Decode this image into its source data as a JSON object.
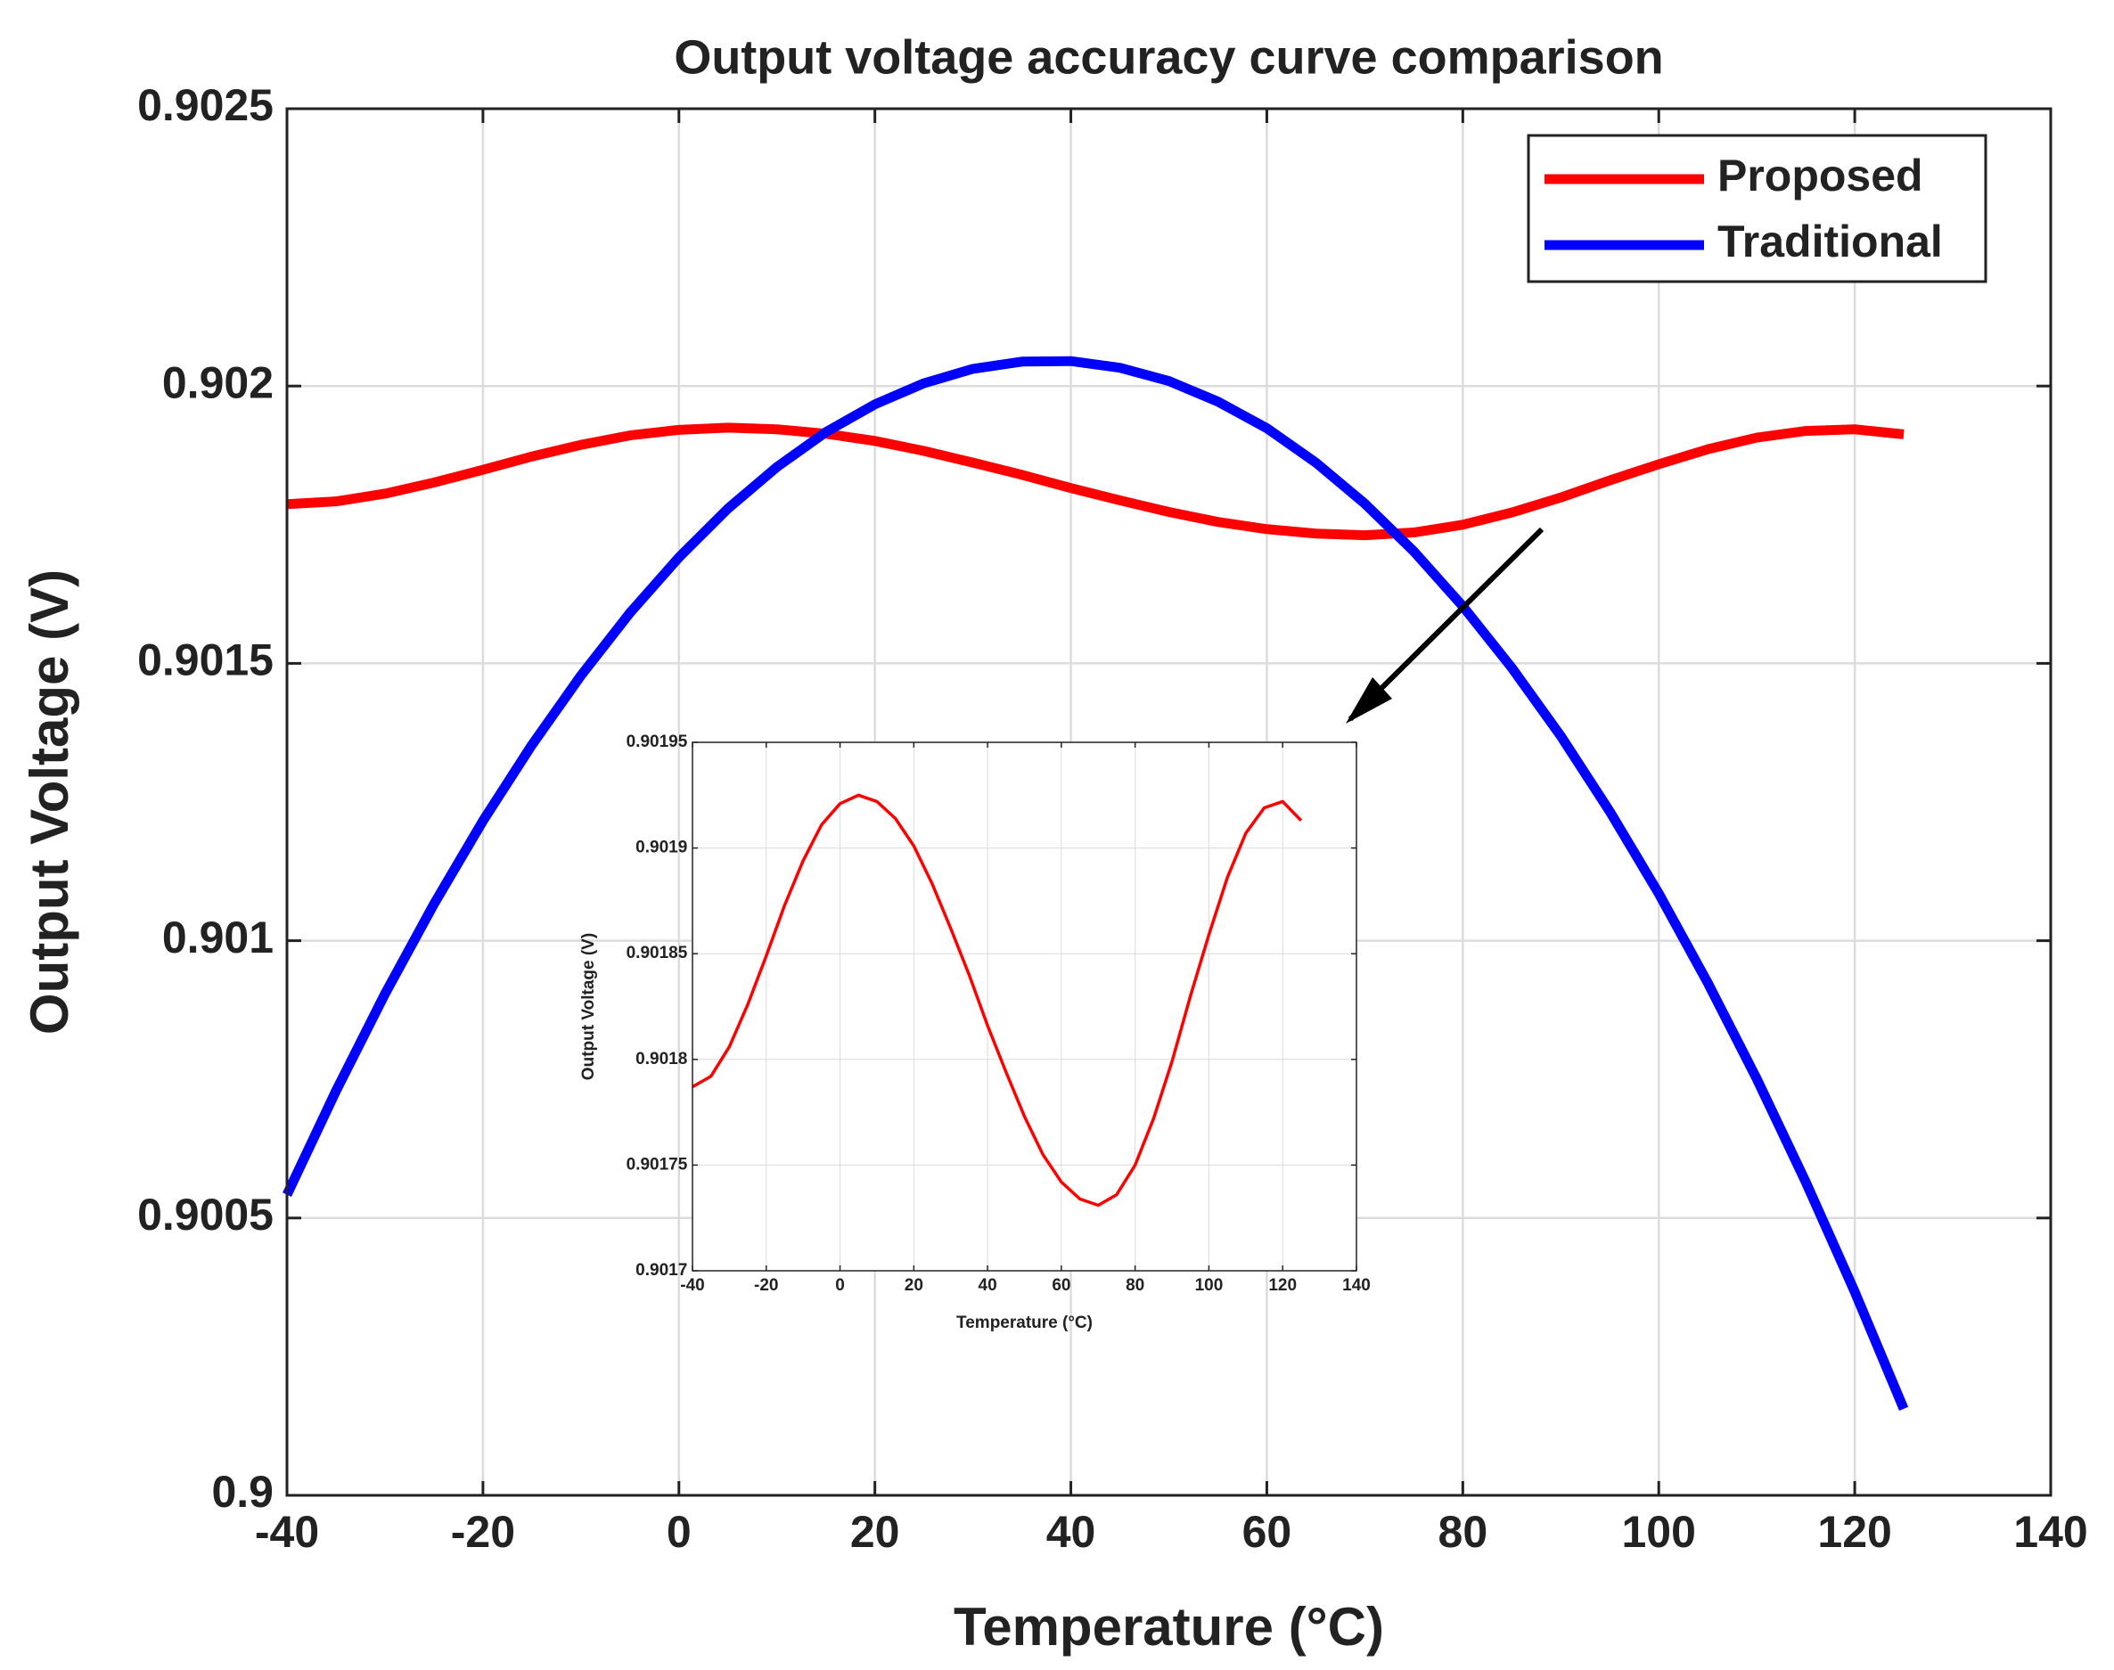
{
  "chart_data": [
    {
      "type": "line",
      "title": "Output voltage accuracy curve comparison",
      "xlabel": "Temperature (°C)",
      "ylabel": "Output Voltage (V)",
      "x": [
        -40,
        -35,
        -30,
        -25,
        -20,
        -15,
        -10,
        -5,
        0,
        5,
        10,
        15,
        20,
        25,
        30,
        35,
        40,
        45,
        50,
        55,
        60,
        65,
        70,
        75,
        80,
        85,
        90,
        95,
        100,
        105,
        110,
        115,
        120,
        125
      ],
      "series": [
        {
          "name": "Proposed",
          "color": "#ff0000",
          "values": [
            0.901787,
            0.901792,
            0.901806,
            0.901826,
            0.901849,
            0.901873,
            0.901894,
            0.901911,
            0.901921,
            0.901925,
            0.901922,
            0.901914,
            0.901901,
            0.901883,
            0.901862,
            0.90184,
            0.901816,
            0.901794,
            0.901773,
            0.901755,
            0.901742,
            0.901734,
            0.901731,
            0.901736,
            0.90175,
            0.901772,
            0.901799,
            0.90183,
            0.901859,
            0.901886,
            0.901907,
            0.901919,
            0.901922,
            0.901913
          ]
        },
        {
          "name": "Traditional",
          "color": "#0000ff",
          "values": [
            0.900542,
            0.900729,
            0.900904,
            0.901066,
            0.901216,
            0.901353,
            0.901478,
            0.901591,
            0.901691,
            0.901779,
            0.901854,
            0.901917,
            0.901967,
            0.902005,
            0.902031,
            0.902044,
            0.902045,
            0.902033,
            0.902009,
            0.901972,
            0.901924,
            0.901862,
            0.901788,
            0.901702,
            0.901603,
            0.901492,
            0.901369,
            0.901233,
            0.901085,
            0.900924,
            0.900751,
            0.900565,
            0.900367,
            0.900156
          ]
        }
      ],
      "xlim": [
        -40,
        140
      ],
      "xticks": [
        -40,
        -20,
        0,
        20,
        40,
        60,
        80,
        100,
        120,
        140
      ],
      "ylim": [
        0.9,
        0.9025
      ],
      "yticks": [
        0.9,
        0.9005,
        0.901,
        0.9015,
        0.902,
        0.9025
      ],
      "grid": true,
      "legend": "upper right"
    },
    {
      "type": "line",
      "xlabel": "Temperature (°C)",
      "ylabel": "Output Voltage (V)",
      "x": [
        -40,
        -35,
        -30,
        -25,
        -20,
        -15,
        -10,
        -5,
        0,
        5,
        10,
        15,
        20,
        25,
        30,
        35,
        40,
        45,
        50,
        55,
        60,
        65,
        70,
        75,
        80,
        85,
        90,
        95,
        100,
        105,
        110,
        115,
        120,
        125
      ],
      "series": [
        {
          "color": "#ff0000",
          "values": [
            0.901787,
            0.901792,
            0.901806,
            0.901826,
            0.901849,
            0.901873,
            0.901894,
            0.901911,
            0.901921,
            0.901925,
            0.901922,
            0.901914,
            0.901901,
            0.901883,
            0.901862,
            0.90184,
            0.901816,
            0.901794,
            0.901773,
            0.901755,
            0.901742,
            0.901734,
            0.901731,
            0.901736,
            0.90175,
            0.901772,
            0.901799,
            0.90183,
            0.901859,
            0.901886,
            0.901907,
            0.901919,
            0.901922,
            0.901913
          ]
        }
      ],
      "xlim": [
        -40,
        140
      ],
      "xticks": [
        -40,
        -20,
        0,
        20,
        40,
        60,
        80,
        100,
        120,
        140
      ],
      "ylim": [
        0.9017,
        0.90195
      ],
      "yticks": [
        0.9017,
        0.90175,
        0.9018,
        0.90185,
        0.9019,
        0.90195
      ],
      "grid": true
    }
  ]
}
